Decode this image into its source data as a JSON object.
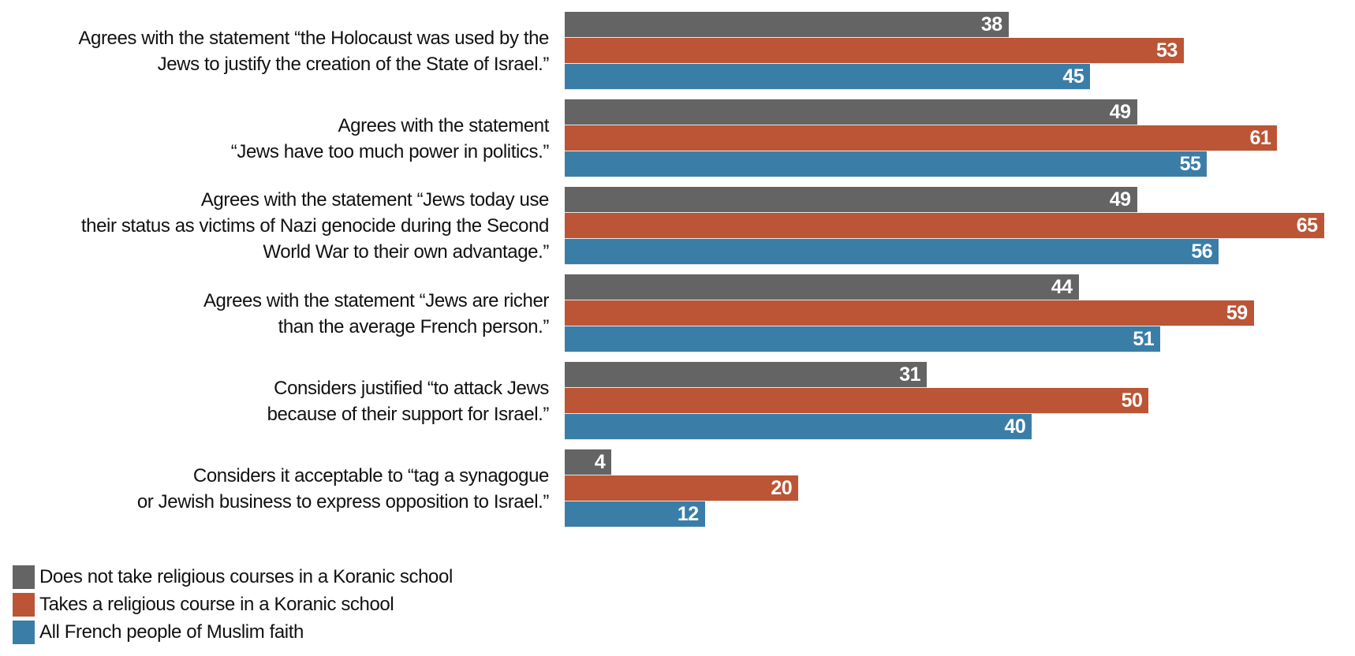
{
  "chart_data": {
    "type": "bar",
    "orientation": "horizontal",
    "categories": [
      [
        "Agrees with the statement “the Holocaust was used by the",
        "Jews to justify the creation of the State of Israel.”"
      ],
      [
        "Agrees with the statement",
        "“Jews have too much power in politics.”"
      ],
      [
        "Agrees with the statement “Jews today use",
        "their status as victims of Nazi genocide during the Second",
        "World War to their own advantage.”"
      ],
      [
        "Agrees with the statement “Jews are richer",
        "than the average French person.”"
      ],
      [
        "Considers justified “to attack Jews",
        "because of their support for Israel.”"
      ],
      [
        "Considers it acceptable to “tag a synagogue",
        "or Jewish business to express opposition to Israel.”"
      ]
    ],
    "series": [
      {
        "name": "Does not take religious courses in a Koranic school",
        "color": "#646464",
        "values": [
          38,
          49,
          49,
          44,
          31,
          4
        ]
      },
      {
        "name": "Takes a religious course in a Koranic school",
        "color": "#bb5535",
        "values": [
          53,
          61,
          65,
          59,
          50,
          20
        ]
      },
      {
        "name": "All French people of Muslim faith",
        "color": "#3a7ea8",
        "values": [
          45,
          55,
          56,
          51,
          40,
          12
        ]
      }
    ],
    "xlim": [
      0,
      65
    ],
    "grid": false,
    "legend": "bottom-left"
  }
}
